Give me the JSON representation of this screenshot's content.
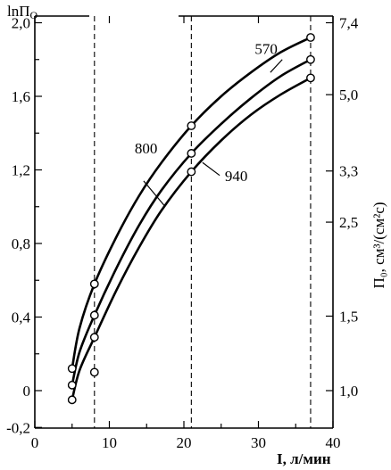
{
  "chart_data": {
    "type": "line",
    "ylabel_left": "lnП",
    "ylabel_left_sub": "O",
    "ylabel_right": "П₀, см³/(см²с)",
    "xlabel": "I, л/мин",
    "xlim": [
      0,
      40
    ],
    "ylim": [
      -0.2,
      2.0
    ],
    "x_ticks": [
      0,
      10,
      20,
      30,
      40
    ],
    "x_tick_labels": [
      "0",
      "10",
      "20",
      "30",
      "40"
    ],
    "y_ticks": [
      -0.2,
      0,
      0.4,
      0.8,
      1.2,
      1.6,
      2.0
    ],
    "y_tick_labels": [
      "-0,2",
      "0",
      "0,4",
      "0,8",
      "1,2",
      "1,6",
      "2,0"
    ],
    "right_ticks": [
      {
        "label": "7,4",
        "ln": 2.0
      },
      {
        "label": "5,0",
        "ln": 1.609
      },
      {
        "label": "3,3",
        "ln": 1.194
      },
      {
        "label": "2,5",
        "ln": 0.916
      },
      {
        "label": "1,5",
        "ln": 0.405
      },
      {
        "label": "1,0",
        "ln": 0.0
      }
    ],
    "dashed_x": [
      8,
      21,
      37
    ],
    "series": [
      {
        "name": "570",
        "points": [
          [
            5,
            0.12
          ],
          [
            8,
            0.58
          ],
          [
            21,
            1.44
          ],
          [
            37,
            1.92
          ]
        ],
        "curve": [
          [
            5,
            0.12
          ],
          [
            6,
            0.34
          ],
          [
            8,
            0.58
          ],
          [
            11,
            0.84
          ],
          [
            14,
            1.06
          ],
          [
            17,
            1.24
          ],
          [
            21,
            1.44
          ],
          [
            25,
            1.6
          ],
          [
            29,
            1.73
          ],
          [
            33,
            1.84
          ],
          [
            37,
            1.92
          ]
        ]
      },
      {
        "name": "800",
        "points": [
          [
            5,
            0.03
          ],
          [
            8,
            0.41
          ],
          [
            8,
            0.1
          ],
          [
            21,
            1.29
          ],
          [
            37,
            1.8
          ]
        ],
        "curve": [
          [
            5,
            0.03
          ],
          [
            6,
            0.21
          ],
          [
            8,
            0.41
          ],
          [
            11,
            0.67
          ],
          [
            14,
            0.9
          ],
          [
            17,
            1.09
          ],
          [
            21,
            1.29
          ],
          [
            25,
            1.45
          ],
          [
            29,
            1.59
          ],
          [
            33,
            1.71
          ],
          [
            37,
            1.8
          ]
        ]
      },
      {
        "name": "940",
        "points": [
          [
            5,
            -0.05
          ],
          [
            8,
            0.29
          ],
          [
            21,
            1.19
          ],
          [
            37,
            1.7
          ]
        ],
        "curve": [
          [
            5,
            -0.05
          ],
          [
            6,
            0.11
          ],
          [
            8,
            0.29
          ],
          [
            11,
            0.55
          ],
          [
            14,
            0.78
          ],
          [
            17,
            0.98
          ],
          [
            21,
            1.19
          ],
          [
            25,
            1.36
          ],
          [
            29,
            1.5
          ],
          [
            33,
            1.61
          ],
          [
            37,
            1.7
          ]
        ]
      }
    ],
    "annotations": [
      {
        "text": "570",
        "x": 29.5,
        "y": 1.83,
        "leader": [
          [
            31.6,
            1.73
          ],
          [
            33.2,
            1.8
          ]
        ]
      },
      {
        "text": "800",
        "x": 13.4,
        "y": 1.29,
        "leader": [
          [
            14.6,
            1.14
          ],
          [
            17.5,
            1.0
          ]
        ]
      },
      {
        "text": "940",
        "x": 25.5,
        "y": 1.14,
        "leader": [
          [
            22.5,
            1.24
          ],
          [
            24.8,
            1.17
          ]
        ]
      }
    ]
  }
}
